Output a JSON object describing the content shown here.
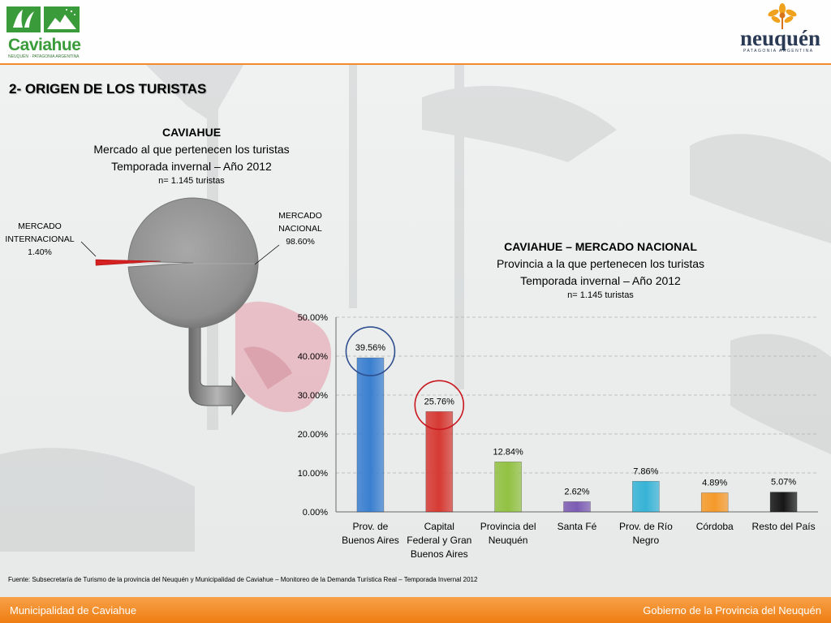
{
  "header": {
    "logo_left_text": "Caviahue",
    "logo_left_subtitle": "NEUQUÉN · PATAGONIA ARGENTINA",
    "logo_right_text": "neuquén",
    "logo_right_subtitle": "PATAGONIA ARGENTINA"
  },
  "section_title": "2- ORIGEN DE LOS TURISTAS",
  "chart_data": [
    {
      "type": "pie",
      "title": "CAVIAHUE",
      "subtitle_lines": [
        "Mercado al que pertenecen los turistas",
        "Temporada invernal – Año 2012"
      ],
      "note": "n= 1.145 turistas",
      "slices": [
        {
          "label_lines": [
            "MERCADO",
            "NACIONAL"
          ],
          "value": 98.6,
          "value_label": "98.60%",
          "color": "#8c8c8c"
        },
        {
          "label_lines": [
            "MERCADO",
            "INTERNACIONAL"
          ],
          "value": 1.4,
          "value_label": "1.40%",
          "color": "#d42020"
        }
      ]
    },
    {
      "type": "bar",
      "title": "CAVIAHUE – MERCADO NACIONAL",
      "subtitle_lines": [
        "Provincia a la que pertenecen los turistas",
        "Temporada invernal – Año 2012"
      ],
      "note": "n= 1.145 turistas",
      "ylim": [
        0,
        50
      ],
      "yticks": [
        "0.00%",
        "10.00%",
        "20.00%",
        "30.00%",
        "40.00%",
        "50.00%"
      ],
      "grid": true,
      "categories": [
        [
          "Prov. de",
          "Buenos Aires"
        ],
        [
          "Capital",
          "Federal y Gran",
          "Buenos Aires"
        ],
        [
          "Provincia del",
          "Neuquén"
        ],
        [
          "Santa Fé"
        ],
        [
          "Prov. de Río",
          "Negro"
        ],
        [
          "Córdoba"
        ],
        [
          "Resto del País"
        ]
      ],
      "values": [
        39.56,
        25.76,
        12.84,
        2.62,
        7.86,
        4.89,
        5.07
      ],
      "value_labels": [
        "39.56%",
        "25.76%",
        "12.84%",
        "2.62%",
        "7.86%",
        "4.89%",
        "5.07%"
      ],
      "colors": [
        "#3a7fd0",
        "#d63a33",
        "#92c142",
        "#7c5cb3",
        "#37b3d6",
        "#f59a2a",
        "#161616"
      ],
      "highlighted": [
        0,
        1
      ],
      "highlight_colors": [
        "#2f4f8f",
        "#c9171e"
      ]
    }
  ],
  "source": "Fuente: Subsecretaría de Turismo de la provincia del Neuquén y Municipalidad de Caviahue – Monitoreo de la Demanda Turística Real – Temporada Invernal 2012",
  "footer": {
    "left": "Municipalidad de Caviahue",
    "right": "Gobierno de la Provincia del Neuquén"
  }
}
